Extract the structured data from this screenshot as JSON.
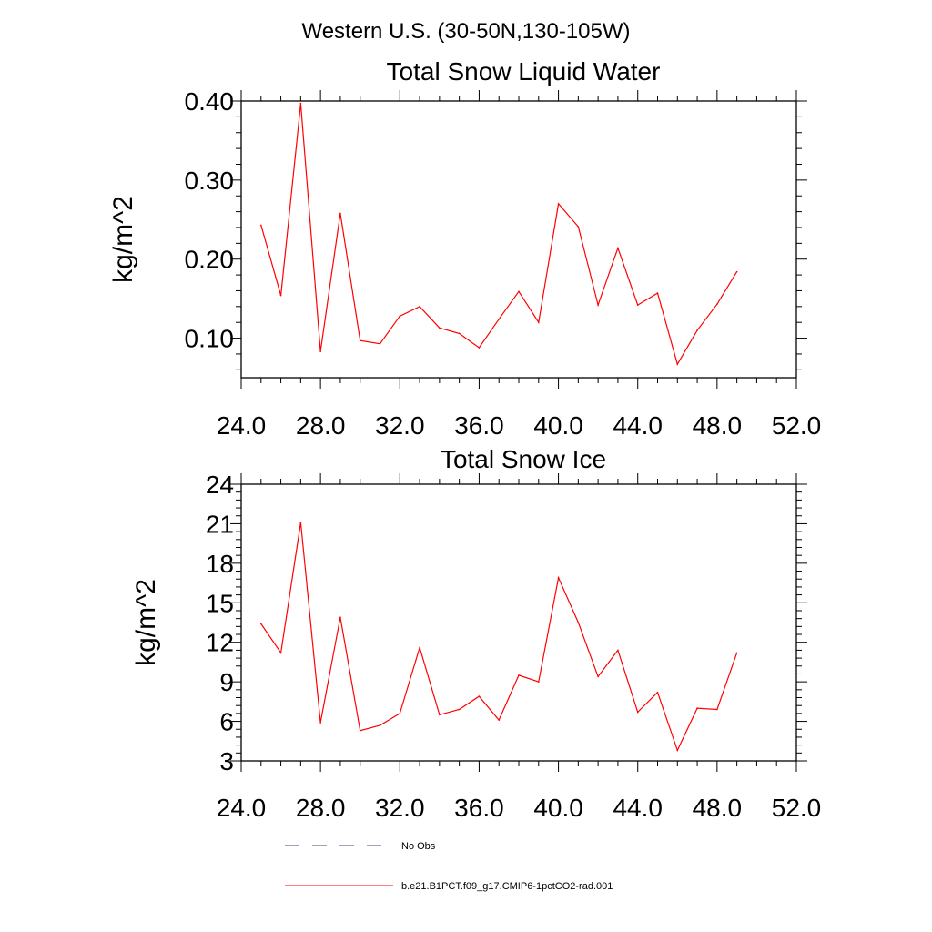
{
  "page": {
    "main_title": "Western U.S. (30-50N,130-105W)"
  },
  "chart_data": [
    {
      "type": "line",
      "title": "Total Snow Liquid Water",
      "xlabel": "",
      "ylabel": "kg/m^2",
      "xlim": [
        24,
        52
      ],
      "ylim": [
        0.05,
        0.4
      ],
      "x_ticks": [
        24,
        28,
        32,
        36,
        40,
        44,
        48,
        52
      ],
      "x_tick_labels": [
        "24.0",
        "28.0",
        "32.0",
        "36.0",
        "40.0",
        "44.0",
        "48.0",
        "52.0"
      ],
      "y_ticks": [
        0.1,
        0.2,
        0.3,
        0.4
      ],
      "y_tick_labels": [
        "0.10",
        "0.20",
        "0.30",
        "0.40"
      ],
      "grid": false,
      "series": [
        {
          "name": "b.e21.B1PCT.f09_g17.CMIP6-1pctCO2-rad.001",
          "color": "#ff0000",
          "x": [
            25,
            26,
            27,
            28,
            29,
            30,
            31,
            32,
            33,
            34,
            35,
            36,
            37,
            38,
            39,
            40,
            41,
            42,
            43,
            44,
            45,
            46,
            47,
            48,
            49
          ],
          "values": [
            0.243,
            0.154,
            0.397,
            0.083,
            0.258,
            0.097,
            0.093,
            0.128,
            0.14,
            0.113,
            0.106,
            0.088,
            0.124,
            0.159,
            0.12,
            0.27,
            0.241,
            0.142,
            0.214,
            0.142,
            0.157,
            0.067,
            0.11,
            0.143,
            0.184
          ]
        }
      ]
    },
    {
      "type": "line",
      "title": "Total Snow Ice",
      "xlabel": "",
      "ylabel": "kg/m^2",
      "xlim": [
        24,
        52
      ],
      "ylim": [
        3,
        24
      ],
      "x_ticks": [
        24,
        28,
        32,
        36,
        40,
        44,
        48,
        52
      ],
      "x_tick_labels": [
        "24.0",
        "28.0",
        "32.0",
        "36.0",
        "40.0",
        "44.0",
        "48.0",
        "52.0"
      ],
      "y_ticks": [
        3,
        6,
        9,
        12,
        15,
        18,
        21,
        24
      ],
      "y_tick_labels": [
        "3",
        "6",
        "9",
        "12",
        "15",
        "18",
        "21",
        "24"
      ],
      "grid": false,
      "series": [
        {
          "name": "b.e21.B1PCT.f09_g17.CMIP6-1pctCO2-rad.001",
          "color": "#ff0000",
          "x": [
            25,
            26,
            27,
            28,
            29,
            30,
            31,
            32,
            33,
            34,
            35,
            36,
            37,
            38,
            39,
            40,
            41,
            42,
            43,
            44,
            45,
            46,
            47,
            48,
            49
          ],
          "values": [
            13.4,
            11.2,
            21.1,
            5.9,
            13.9,
            5.3,
            5.7,
            6.6,
            11.6,
            6.5,
            6.9,
            7.9,
            6.1,
            9.5,
            9.0,
            16.9,
            13.5,
            9.4,
            11.4,
            6.7,
            8.2,
            3.8,
            7.0,
            6.9,
            11.2
          ]
        }
      ]
    }
  ],
  "legend": {
    "placement": "bottom",
    "items": [
      {
        "label": "No Obs",
        "color": "#3a4a7a",
        "style": "dashed"
      },
      {
        "label": "b.e21.B1PCT.f09_g17.CMIP6-1pctCO2-rad.001",
        "color": "#ff0000",
        "style": "solid"
      }
    ]
  }
}
